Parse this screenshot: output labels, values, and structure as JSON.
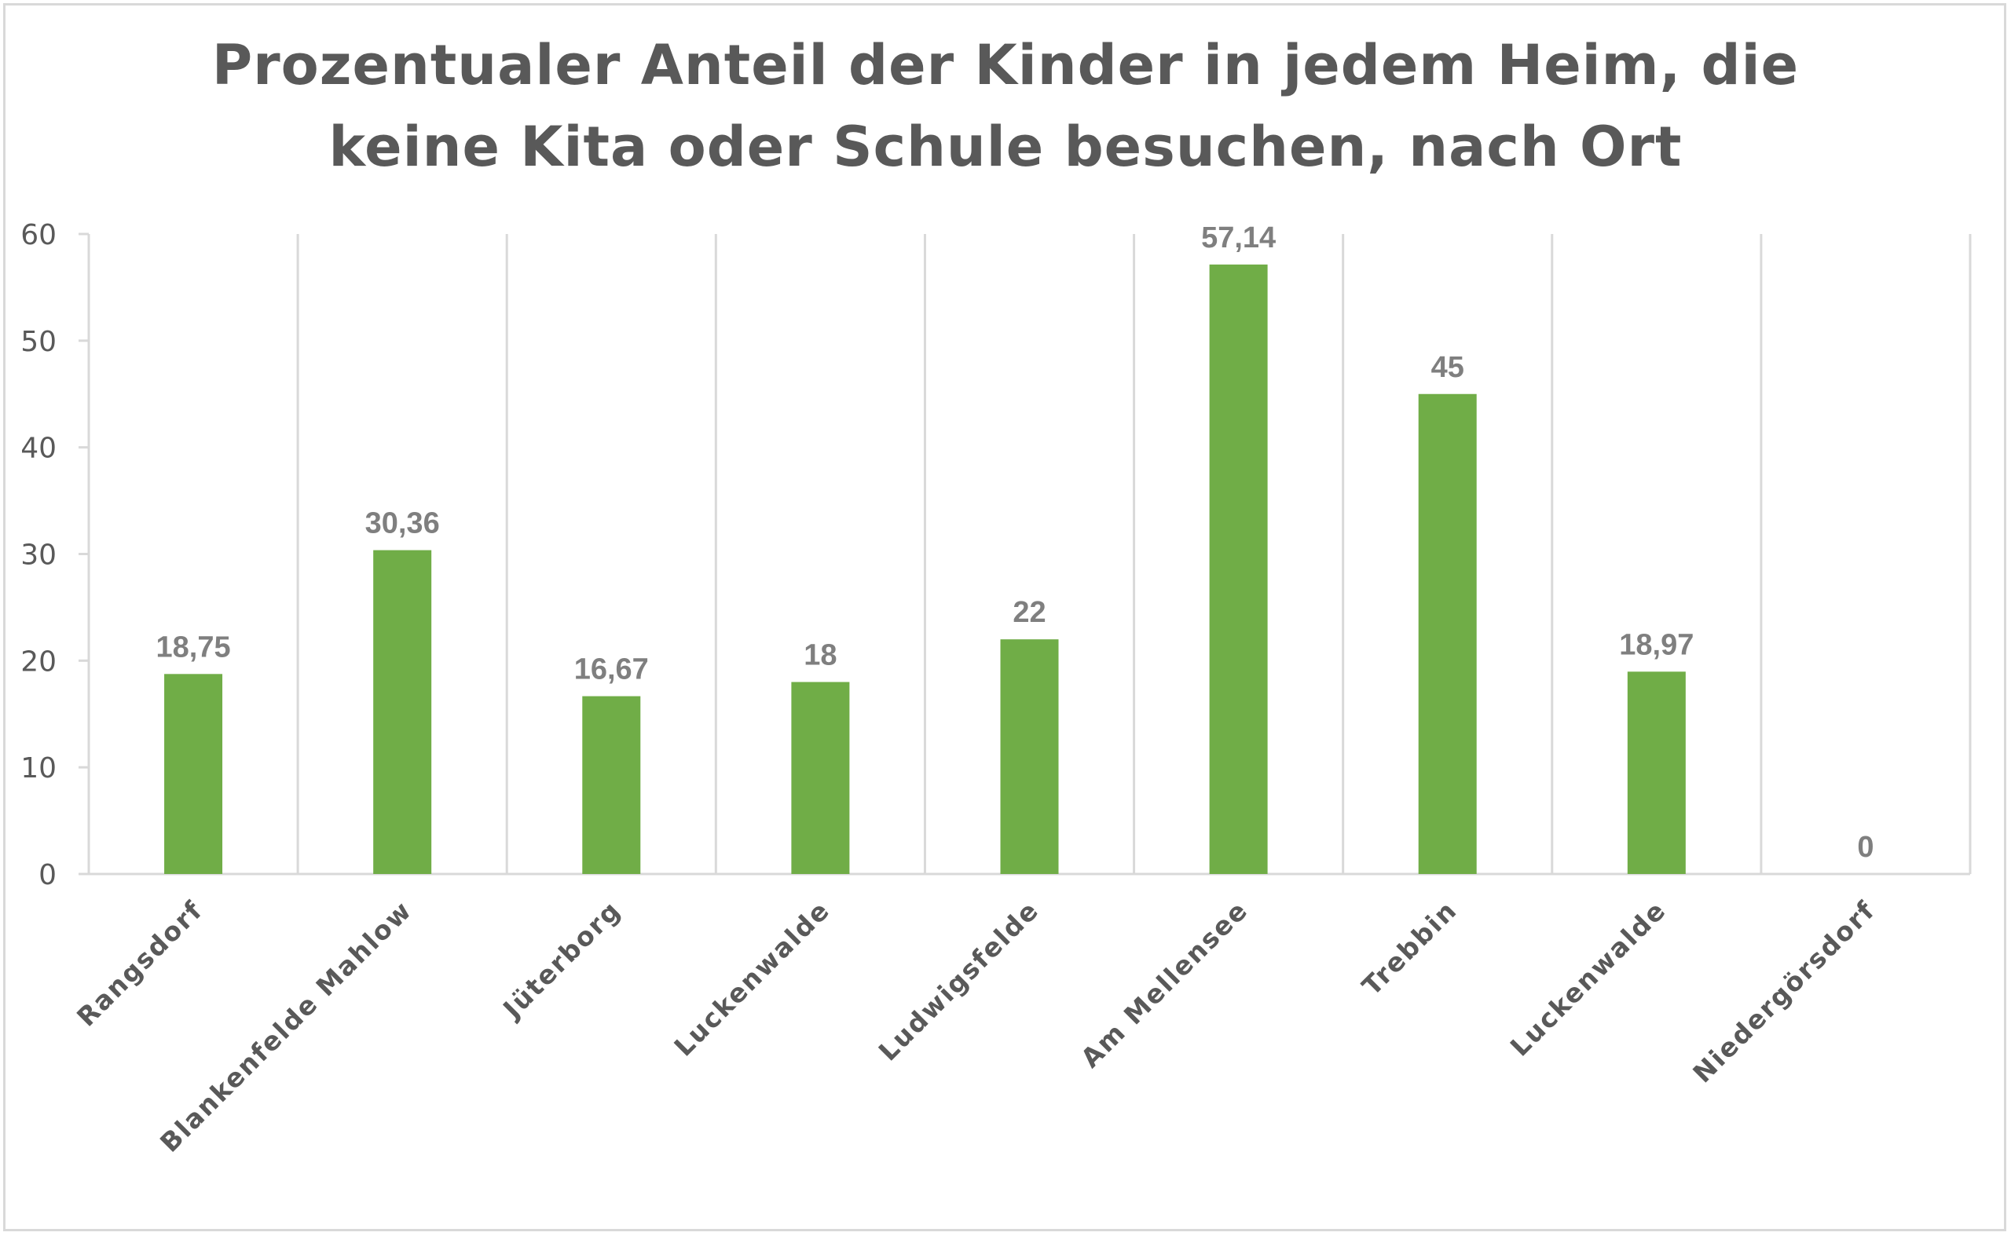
{
  "chart_data": {
    "type": "bar",
    "title_lines": [
      "Prozentualer Anteil der Kinder in jedem Heim, die",
      "keine Kita oder Schule besuchen, nach Ort"
    ],
    "title": "Prozentualer Anteil der Kinder in jedem Heim, die keine Kita oder Schule besuchen, nach Ort",
    "xlabel": "",
    "ylabel": "",
    "categories": [
      "Rangsdorf",
      "Blankenfelde Mahlow",
      "Jüterborg",
      "Luckenwalde",
      "Ludwigsfelde",
      "Am Mellensee",
      "Trebbin",
      "Luckenwalde",
      "Niedergörsdorf"
    ],
    "values": [
      18.75,
      30.36,
      16.67,
      18,
      22,
      57.14,
      45,
      18.97,
      0
    ],
    "data_labels": [
      "18,75",
      "30,36",
      "16,67",
      "18",
      "22",
      "57,14",
      "45",
      "18,97",
      "0"
    ],
    "ylim": [
      0,
      60
    ],
    "yticks": [
      0,
      10,
      20,
      30,
      40,
      50,
      60
    ],
    "ytick_labels": [
      "0",
      "10",
      "20",
      "30",
      "40",
      "50",
      "60"
    ],
    "grid": "vertical category separators",
    "legend": "none",
    "colors": {
      "bar": "#70ad47",
      "axis": "#d9d9d9",
      "text": "#595959",
      "data_label": "#7f7f7f"
    }
  }
}
